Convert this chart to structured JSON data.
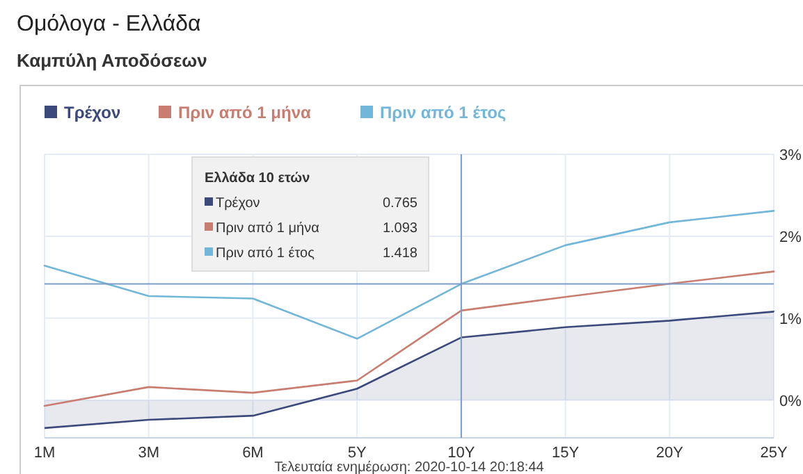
{
  "chart_data": {
    "type": "line",
    "title": "Ομόλογα - Ελλάδα",
    "subtitle": "Καμπύλη Αποδόσεων",
    "categories": [
      "1M",
      "3M",
      "6M",
      "5Y",
      "10Y",
      "15Y",
      "20Y",
      "25Y"
    ],
    "series": [
      {
        "name": "Τρέχον",
        "color": "#3b4a7a",
        "type": "area",
        "values": [
          -0.34,
          -0.24,
          -0.19,
          0.14,
          0.765,
          0.89,
          0.97,
          1.08
        ]
      },
      {
        "name": "Πριν από 1 μήνα",
        "color": "#c97d70",
        "values": [
          -0.07,
          0.16,
          0.09,
          0.24,
          1.093,
          1.26,
          1.42,
          1.57
        ]
      },
      {
        "name": "Πριν από 1 έτος",
        "color": "#72b6d8",
        "values": [
          1.64,
          1.27,
          1.24,
          0.75,
          1.418,
          1.89,
          2.17,
          2.31
        ]
      }
    ],
    "ylim": [
      -0.46,
      3
    ],
    "yticks": [
      {
        "value": 0,
        "label": "0%"
      },
      {
        "value": 1,
        "label": "1%"
      },
      {
        "value": 2,
        "label": "2%"
      },
      {
        "value": 3,
        "label": "3%"
      }
    ],
    "grid": true,
    "legend": "top left",
    "marker": "none",
    "line_style": "solid",
    "ref_lines": [
      {
        "axis": "x",
        "value": "10Y",
        "label": null,
        "color": "#7a9cc9"
      },
      {
        "axis": "y",
        "value": 1.418,
        "label": null,
        "color": "#7a9cc9"
      }
    ],
    "annotations": [
      "Ελλάδα 10 ετών",
      "0.765",
      "1.093",
      "1.418",
      "Τελευταία ενημέρωση: 2020-10-14 20:18:44"
    ]
  }
}
